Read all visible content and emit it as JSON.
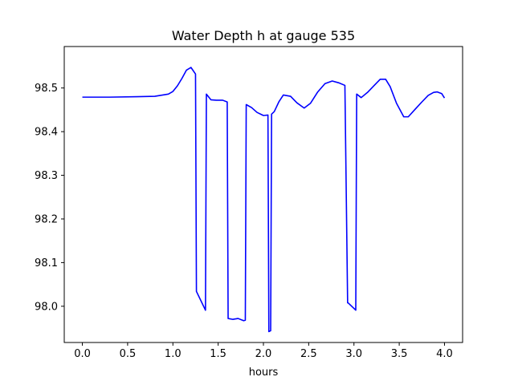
{
  "chart_data": {
    "type": "line",
    "title": "Water Depth h at gauge 535",
    "xlabel": "hours",
    "ylabel": "",
    "xlim": [
      -0.2,
      4.2
    ],
    "ylim": [
      97.917,
      98.595
    ],
    "xticks": [
      0.0,
      0.5,
      1.0,
      1.5,
      2.0,
      2.5,
      3.0,
      3.5,
      4.0
    ],
    "xtick_labels": [
      "0.0",
      "0.5",
      "1.0",
      "1.5",
      "2.0",
      "2.5",
      "3.0",
      "3.5",
      "4.0"
    ],
    "yticks": [
      98.0,
      98.1,
      98.2,
      98.3,
      98.4,
      98.5
    ],
    "ytick_labels": [
      "98.0",
      "98.1",
      "98.2",
      "98.3",
      "98.4",
      "98.5"
    ],
    "grid": false,
    "series": [
      {
        "color": "#0000ff",
        "x": [
          0.0,
          0.3,
          0.6,
          0.8,
          0.95,
          1.0,
          1.05,
          1.1,
          1.15,
          1.2,
          1.25,
          1.26,
          1.36,
          1.37,
          1.42,
          1.48,
          1.55,
          1.6,
          1.61,
          1.66,
          1.72,
          1.78,
          1.8,
          1.81,
          1.87,
          1.93,
          2.0,
          2.05,
          2.06,
          2.08,
          2.09,
          2.12,
          2.17,
          2.22,
          2.3,
          2.37,
          2.45,
          2.52,
          2.6,
          2.68,
          2.76,
          2.83,
          2.9,
          2.93,
          2.94,
          3.02,
          3.03,
          3.08,
          3.15,
          3.22,
          3.29,
          3.35,
          3.4,
          3.47,
          3.55,
          3.6,
          3.67,
          3.75,
          3.82,
          3.88,
          3.92,
          3.97,
          4.0
        ],
        "y": [
          98.479,
          98.479,
          98.48,
          98.481,
          98.486,
          98.492,
          98.505,
          98.522,
          98.541,
          98.547,
          98.532,
          98.034,
          97.991,
          98.486,
          98.473,
          98.472,
          98.472,
          98.468,
          97.972,
          97.97,
          97.972,
          97.967,
          97.968,
          98.462,
          98.455,
          98.444,
          98.437,
          98.438,
          97.942,
          97.944,
          98.44,
          98.446,
          98.468,
          98.484,
          98.481,
          98.466,
          98.454,
          98.465,
          98.491,
          98.51,
          98.516,
          98.512,
          98.506,
          98.008,
          98.007,
          97.991,
          98.486,
          98.478,
          98.49,
          98.505,
          98.52,
          98.52,
          98.503,
          98.465,
          98.434,
          98.434,
          98.45,
          98.468,
          98.483,
          98.49,
          98.491,
          98.487,
          98.477
        ]
      }
    ]
  }
}
